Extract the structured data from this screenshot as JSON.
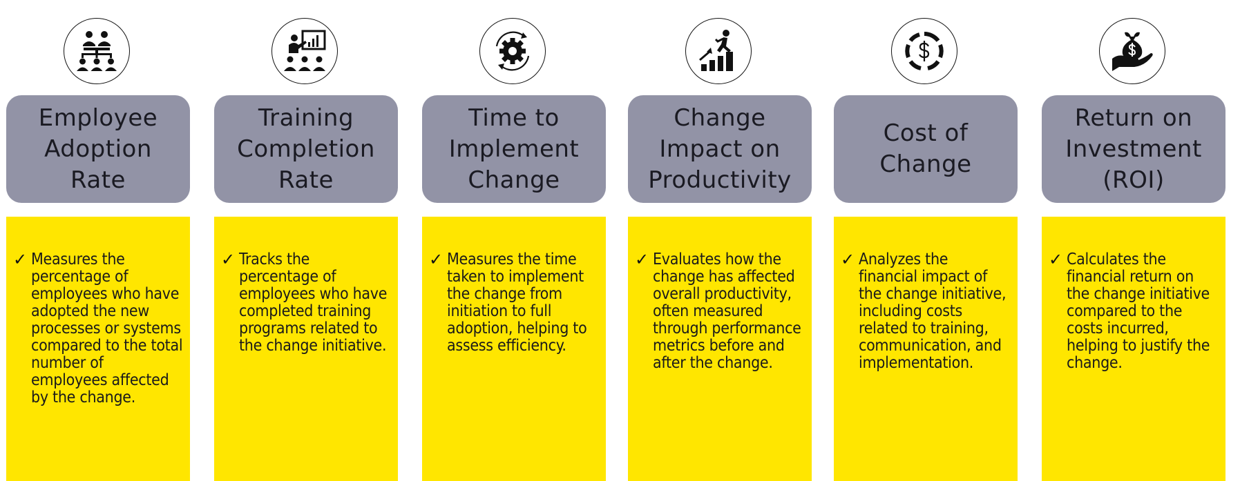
{
  "check_glyph": "✓",
  "colors": {
    "title_bg": "#9293a6",
    "desc_bg": "#ffe600",
    "text": "#1a1a22"
  },
  "metrics": [
    {
      "icon": "org-hierarchy-icon",
      "title_lines": [
        "Employee",
        "Adoption",
        "Rate"
      ],
      "description": "Measures the percentage of employees who have adopted the new processes or systems compared to the total number of employees affected by the change."
    },
    {
      "icon": "presentation-training-icon",
      "title_lines": [
        "Training",
        "Completion",
        "Rate"
      ],
      "description": "Tracks the percentage of employees who have completed training programs related to the change initiative."
    },
    {
      "icon": "gear-cycle-icon",
      "title_lines": [
        "Time to",
        "Implement",
        "Change"
      ],
      "description": "Measures the time taken to implement the change from initiation to full adoption, helping to assess efficiency."
    },
    {
      "icon": "growth-stairs-icon",
      "title_lines": [
        "Change",
        "Impact on",
        "Productivity"
      ],
      "description": "Evaluates how the change has affected overall productivity, often measured through performance metrics before and after the change."
    },
    {
      "icon": "dollar-cycle-icon",
      "title_lines": [
        "Cost of",
        "Change"
      ],
      "description": "Analyzes the financial impact of the change initiative, including costs related to training, communication, and implementation."
    },
    {
      "icon": "money-bag-hand-icon",
      "title_lines": [
        "Return on",
        "Investment",
        "(ROI)"
      ],
      "description": "Calculates the financial return on the change initiative compared to the costs incurred, helping to justify the change."
    }
  ]
}
